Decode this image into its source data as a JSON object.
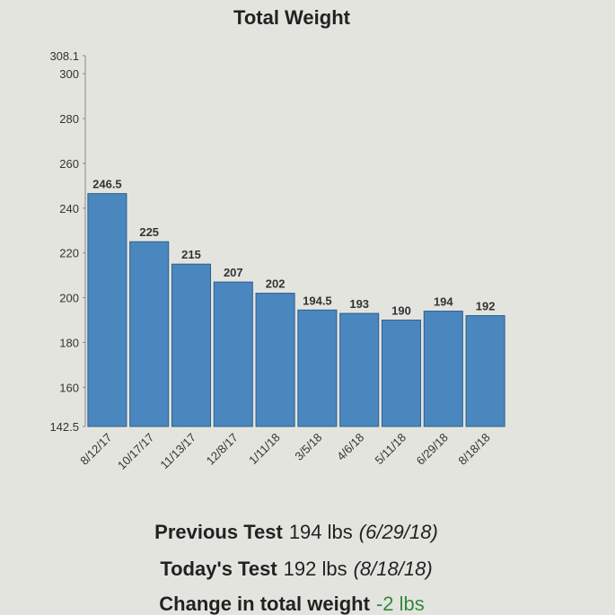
{
  "chart_data": {
    "type": "bar",
    "title": "Total Weight",
    "categories": [
      "8/12/17",
      "10/17/17",
      "11/13/17",
      "12/8/17",
      "1/11/18",
      "3/5/18",
      "4/6/18",
      "5/11/18",
      "6/29/18",
      "8/18/18"
    ],
    "values": [
      246.5,
      225,
      215,
      207,
      202,
      194.5,
      193,
      190,
      194,
      192
    ],
    "color": "#4a87bf",
    "ylim": [
      142.5,
      308.1
    ],
    "yticks": [
      142.5,
      160,
      180,
      200,
      220,
      240,
      260,
      280,
      300,
      308.1
    ],
    "grid": false
  },
  "summary": [
    {
      "label": "Previous Test",
      "value": "194 lbs",
      "date": "(6/29/18)"
    },
    {
      "label": "Today's Test",
      "value": "192 lbs",
      "date": "(8/18/18)"
    },
    {
      "label": "Change in total weight",
      "value": "-2 lbs"
    }
  ]
}
